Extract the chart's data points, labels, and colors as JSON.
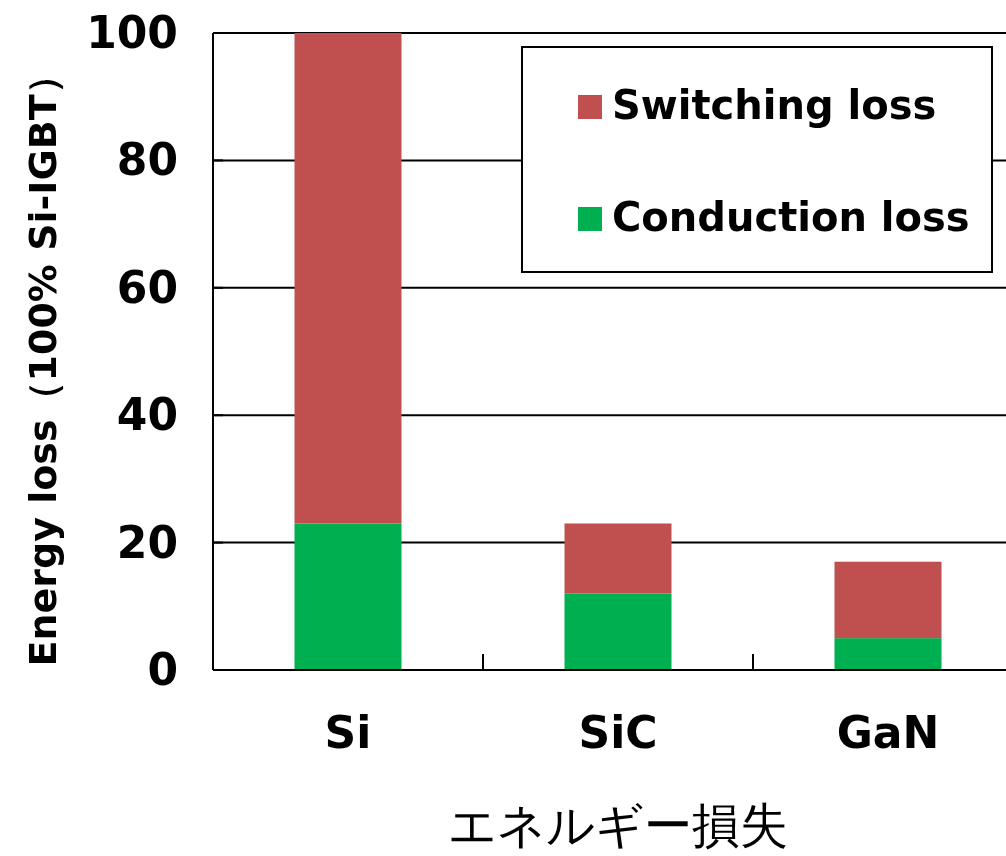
{
  "chart_data": {
    "type": "bar",
    "stacked": true,
    "categories": [
      "Si",
      "SiC",
      "GaN"
    ],
    "series": [
      {
        "name": "Conduction loss",
        "color": "#00b050",
        "values": [
          23,
          12,
          5
        ]
      },
      {
        "name": "Switching loss",
        "color": "#c0504f",
        "values": [
          77,
          11,
          12
        ]
      }
    ],
    "ylim": [
      0,
      100
    ],
    "yticks": [
      0,
      20,
      40,
      60,
      80,
      100
    ],
    "grid": "y",
    "legend": "top right",
    "xlabel": "エネルギー損失",
    "ylabel": "Energy loss（100% Si-IGBT）"
  }
}
